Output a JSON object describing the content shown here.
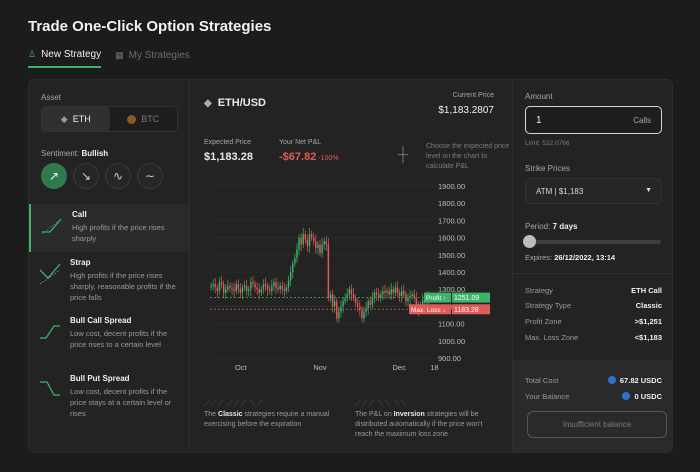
{
  "page": {
    "title": "Trade One-Click Option Strategies"
  },
  "tabs": [
    {
      "label": "New Strategy",
      "active": true
    },
    {
      "label": "My Strategies",
      "active": false
    }
  ],
  "asset": {
    "label": "Asset",
    "options": [
      {
        "label": "ETH",
        "selected": true
      },
      {
        "label": "BTC",
        "selected": false
      }
    ]
  },
  "sentiment": {
    "label": "Sentiment:",
    "value": "Bullish",
    "buttons": [
      "↗",
      "↘",
      "∿",
      "∼"
    ]
  },
  "strategies": [
    {
      "name": "Call",
      "desc": "High profits if the price rises sharply",
      "selected": true
    },
    {
      "name": "Strap",
      "desc": "High profits if the price rises sharply, reasonable profits if the price falls",
      "selected": false
    },
    {
      "name": "Bull Call Spread",
      "desc": "Low cost, decent profits if the price rises to a certain level",
      "selected": false
    },
    {
      "name": "Bull Put Spread",
      "desc": "Low cost, decent profits if the price stays at a certain level or rises",
      "selected": false
    }
  ],
  "market": {
    "pair": "ETH/USD",
    "current_price_label": "Current Price",
    "current_price": "$1,183.2807",
    "expected_price_label": "Expected Price",
    "expected_price": "$1,183.28",
    "pnl_label": "Your Net P&L",
    "pnl_value": "-$67.82",
    "pnl_pct": "-100%",
    "hint": "Choose the expected price level on the chart to calculate P&L"
  },
  "chart_data": {
    "type": "candlestick",
    "x_ticks": [
      "Oct",
      "Nov",
      "Dec",
      "18"
    ],
    "y_ticks": [
      1900,
      1800,
      1700,
      1600,
      1500,
      1400,
      1300,
      1200,
      1100,
      1000,
      900
    ],
    "y_tick_labels": [
      "1900.00",
      "1800.00",
      "1700.00",
      "1600.00",
      "1500.00",
      "1400.00",
      "1300.00",
      "1200.00",
      "1100.00",
      "1000.00",
      "900.00"
    ],
    "ylim": [
      900,
      1900
    ],
    "closes": [
      1320,
      1330,
      1310,
      1290,
      1340,
      1330,
      1280,
      1300,
      1320,
      1310,
      1300,
      1290,
      1330,
      1300,
      1280,
      1310,
      1320,
      1290,
      1300,
      1340,
      1330,
      1310,
      1300,
      1280,
      1300,
      1330,
      1320,
      1300,
      1290,
      1320,
      1340,
      1310,
      1300,
      1320,
      1300,
      1290,
      1310,
      1350,
      1400,
      1450,
      1480,
      1530,
      1600,
      1560,
      1620,
      1590,
      1550,
      1620,
      1600,
      1580,
      1540,
      1560,
      1510,
      1560,
      1580,
      1560,
      1250,
      1270,
      1200,
      1230,
      1130,
      1170,
      1200,
      1230,
      1250,
      1270,
      1300,
      1270,
      1250,
      1220,
      1200,
      1180,
      1130,
      1170,
      1190,
      1230,
      1210,
      1250,
      1280,
      1270,
      1250,
      1270,
      1290,
      1280,
      1290,
      1270,
      1300,
      1280,
      1310,
      1280,
      1260,
      1290,
      1270,
      1230,
      1250,
      1260,
      1270,
      1250,
      1210,
      1180,
      1200,
      1240,
      1260,
      1230,
      1250
    ],
    "profit_label": "Profit ↑",
    "profit_value": "1251.09",
    "loss_label": "Max. Loss ↓",
    "loss_value": "1183.28",
    "profit_level": 1251.09,
    "loss_level": 1183.28,
    "colors": {
      "up": "#3bb36a",
      "down": "#e05a5a"
    }
  },
  "footer": {
    "note1_pre": "The ",
    "note1_bold": "Classic",
    "note1_post": " strategies require a manual exercising before the expiration",
    "note2_pre": "The P&L on ",
    "note2_bold": "Inversion",
    "note2_post": " strategies will be distributed automatically if the price won't reach the maximum loss zone",
    "icons1": "⟋⟋⟋ ⟋⟋⟋ ⟍⟋",
    "icons2": "⟋⟋⟋ ⟍⟍ ⟍⟍"
  },
  "order": {
    "amount_label": "Amount",
    "amount_value": "1",
    "amount_unit": "Calls",
    "limit": "Limit: 522.0766",
    "strike_label": "Strike Prices",
    "strike_value": "ATM  |  $1,183",
    "period_label": "Period:",
    "period_value": "7 days",
    "period_fraction": 0,
    "expires_label": "Expires:",
    "expires_value": "26/12/2022, 13:14",
    "details": [
      {
        "k": "Strategy",
        "v": "ETH Call"
      },
      {
        "k": "Strategy Type",
        "v": "Classic"
      },
      {
        "k": "Profit Zone",
        "v": ">$1,251"
      },
      {
        "k": "Max. Loss Zone",
        "v": "<$1,183"
      }
    ],
    "total_cost_label": "Total Cost",
    "total_cost_value": "67.82 USDC",
    "balance_label": "Your Balance",
    "balance_value": "0 USDC",
    "button_label": "Insufficient balance"
  }
}
